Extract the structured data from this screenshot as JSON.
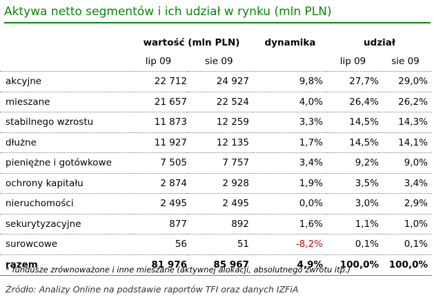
{
  "title": "Aktywa netto segmentów i ich udział w rynku (mln PLN)",
  "header": {
    "group_value": "wartość (mln PLN)",
    "group_dynamics": "dynamika",
    "group_share": "udział",
    "value_col1": "lip 09",
    "value_col2": "sie 09",
    "share_col1": "lip 09",
    "share_col2": "sie 09"
  },
  "rows": [
    {
      "label": "akcyjne",
      "v1": "22 712",
      "v2": "24 927",
      "dyn": "9,8%",
      "s1": "27,7%",
      "s2": "29,0%"
    },
    {
      "label": "mieszane",
      "v1": "21 657",
      "v2": "22 524",
      "dyn": "4,0%",
      "s1": "26,4%",
      "s2": "26,2%"
    },
    {
      "label": "stabilnego wzrostu",
      "v1": "11 873",
      "v2": "12 259",
      "dyn": "3,3%",
      "s1": "14,5%",
      "s2": "14,3%"
    },
    {
      "label": "dłużne",
      "v1": "11 927",
      "v2": "12 135",
      "dyn": "1,7%",
      "s1": "14,5%",
      "s2": "14,1%"
    },
    {
      "label": "pieniężne i gotówkowe",
      "v1": "7 505",
      "v2": "7 757",
      "dyn": "3,4%",
      "s1": "9,2%",
      "s2": "9,0%"
    },
    {
      "label": "ochrony kapitału",
      "v1": "2 874",
      "v2": "2 928",
      "dyn": "1,9%",
      "s1": "3,5%",
      "s2": "3,4%"
    },
    {
      "label": "nieruchomości",
      "v1": "2 495",
      "v2": "2 495",
      "dyn": "0,0%",
      "s1": "3,0%",
      "s2": "2,9%"
    },
    {
      "label": "sekurytyzacyjne",
      "v1": "877",
      "v2": "892",
      "dyn": "1,6%",
      "s1": "1,1%",
      "s2": "1,0%"
    },
    {
      "label": "surowcowe",
      "v1": "56",
      "v2": "51",
      "dyn": "-8,2%",
      "s1": "0,1%",
      "s2": "0,1%"
    }
  ],
  "total": {
    "label": "razem",
    "v1": "81 976",
    "v2": "85 967",
    "dyn": "4,9%",
    "s1": "100,0%",
    "s2": "100,0%"
  },
  "footnote": "* fundusze zrównoważone i inne mieszane (aktywnej alokacji, absolutnego zwrotu itp.)",
  "source": "Źródło: Analizy Online na podstawie raportów TFI oraz danych IZFiA",
  "colors": {
    "title": "#008a00",
    "negative": "#e00000"
  }
}
